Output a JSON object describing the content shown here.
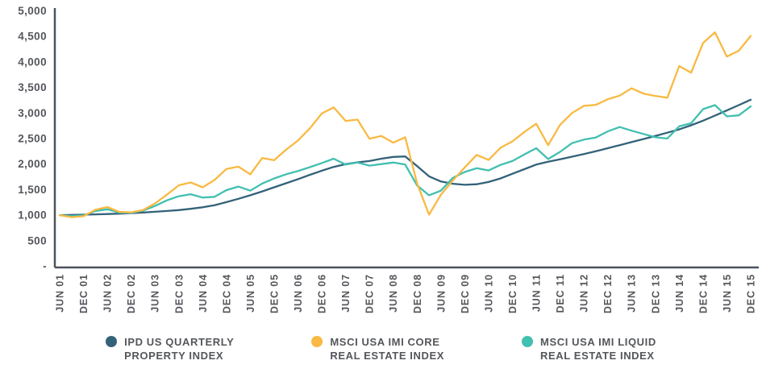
{
  "chart_data": {
    "type": "line",
    "title": "",
    "xlabel": "",
    "ylabel": "",
    "ylim": [
      0,
      5000
    ],
    "grid": false,
    "legend_position": "bottom",
    "background": "#ffffff",
    "axis_color": "#4B535B",
    "tick_text_color": "#54565B",
    "y_ticks": [
      5000,
      4500,
      4000,
      3500,
      3000,
      2500,
      2000,
      1500,
      1000,
      500,
      0
    ],
    "y_tick_labels": [
      "5,000",
      "4,500",
      "4,000",
      "3,500",
      "3,000",
      "2,500",
      "2,000",
      "1,500",
      "1,000",
      "500",
      "-"
    ],
    "x_tick_labels": [
      "JUN 01",
      "DEC 01",
      "JUN 02",
      "DEC 02",
      "JUN 03",
      "DEC 03",
      "JUN 04",
      "DEC 04",
      "JUN 05",
      "DEC 05",
      "JUN 06",
      "DEC 06",
      "JUN 07",
      "DEC 07",
      "JUN 08",
      "DEC 08",
      "JUN 09",
      "DEC 09",
      "JUN 10",
      "DEC 10",
      "JUN 11",
      "DEC 11",
      "JUN 12",
      "DEC 12",
      "JUN 13",
      "DEC 13",
      "JUN 14",
      "DEC 14",
      "JUN 15",
      "DEC 15"
    ],
    "x_points": [
      "JUN 01",
      "SEP 01",
      "DEC 01",
      "MAR 02",
      "JUN 02",
      "SEP 02",
      "DEC 02",
      "MAR 03",
      "JUN 03",
      "SEP 03",
      "DEC 03",
      "MAR 04",
      "JUN 04",
      "SEP 04",
      "DEC 04",
      "MAR 05",
      "JUN 05",
      "SEP 05",
      "DEC 05",
      "MAR 06",
      "JUN 06",
      "SEP 06",
      "DEC 06",
      "MAR 07",
      "JUN 07",
      "SEP 07",
      "DEC 07",
      "MAR 08",
      "JUN 08",
      "SEP 08",
      "DEC 08",
      "MAR 09",
      "JUN 09",
      "SEP 09",
      "DEC 09",
      "MAR 10",
      "JUN 10",
      "SEP 10",
      "DEC 10",
      "MAR 11",
      "JUN 11",
      "SEP 11",
      "DEC 11",
      "MAR 12",
      "JUN 12",
      "SEP 12",
      "DEC 12",
      "MAR 13",
      "JUN 13",
      "SEP 13",
      "DEC 13",
      "MAR 14",
      "JUN 14",
      "SEP 14",
      "DEC 14",
      "MAR 15",
      "JUN 15",
      "SEP 15",
      "DEC 15"
    ],
    "draw_order": [
      0,
      2,
      1
    ],
    "series": [
      {
        "name": "IPD US QUARTERLY PROPERTY INDEX",
        "legend": [
          "IPD US QUARTERLY",
          "PROPERTY INDEX"
        ],
        "color": "#336279",
        "values": [
          1000,
          1005,
          1010,
          1016,
          1022,
          1030,
          1040,
          1052,
          1066,
          1082,
          1100,
          1125,
          1155,
          1195,
          1255,
          1320,
          1390,
          1465,
          1545,
          1625,
          1705,
          1790,
          1870,
          1945,
          2000,
          2035,
          2060,
          2105,
          2140,
          2150,
          1960,
          1760,
          1660,
          1615,
          1595,
          1605,
          1650,
          1720,
          1810,
          1900,
          1990,
          2045,
          2095,
          2145,
          2195,
          2250,
          2310,
          2370,
          2430,
          2490,
          2550,
          2615,
          2680,
          2760,
          2850,
          2950,
          3050,
          3155,
          3260
        ]
      },
      {
        "name": "MSCI USA IMI CORE REAL ESTATE INDEX",
        "legend": [
          "MSCI USA IMI CORE",
          "REAL ESTATE INDEX"
        ],
        "color": "#F9B942",
        "values": [
          1000,
          960,
          980,
          1105,
          1160,
          1065,
          1055,
          1100,
          1230,
          1400,
          1585,
          1640,
          1545,
          1690,
          1905,
          1950,
          1800,
          2120,
          2075,
          2280,
          2460,
          2700,
          2990,
          3110,
          2845,
          2870,
          2495,
          2550,
          2420,
          2525,
          1620,
          1010,
          1400,
          1680,
          1935,
          2180,
          2080,
          2320,
          2445,
          2630,
          2790,
          2370,
          2770,
          3000,
          3140,
          3160,
          3270,
          3340,
          3485,
          3380,
          3335,
          3300,
          3920,
          3790,
          4370,
          4580,
          4105,
          4220,
          4510
        ]
      },
      {
        "name": "MSCI USA IMI LIQUID REAL ESTATE INDEX",
        "legend": [
          "MSCI USA IMI LIQUID",
          "REAL ESTATE INDEX"
        ],
        "color": "#41BFB0",
        "values": [
          1000,
          985,
          995,
          1080,
          1115,
          1050,
          1045,
          1090,
          1180,
          1290,
          1370,
          1410,
          1345,
          1360,
          1490,
          1560,
          1480,
          1620,
          1720,
          1800,
          1865,
          1940,
          2020,
          2105,
          1990,
          2030,
          1970,
          2000,
          2030,
          1990,
          1580,
          1390,
          1480,
          1730,
          1845,
          1920,
          1875,
          1985,
          2060,
          2190,
          2310,
          2100,
          2240,
          2410,
          2480,
          2520,
          2640,
          2725,
          2655,
          2590,
          2525,
          2500,
          2740,
          2800,
          3075,
          3155,
          2935,
          2955,
          3130
        ]
      }
    ]
  }
}
